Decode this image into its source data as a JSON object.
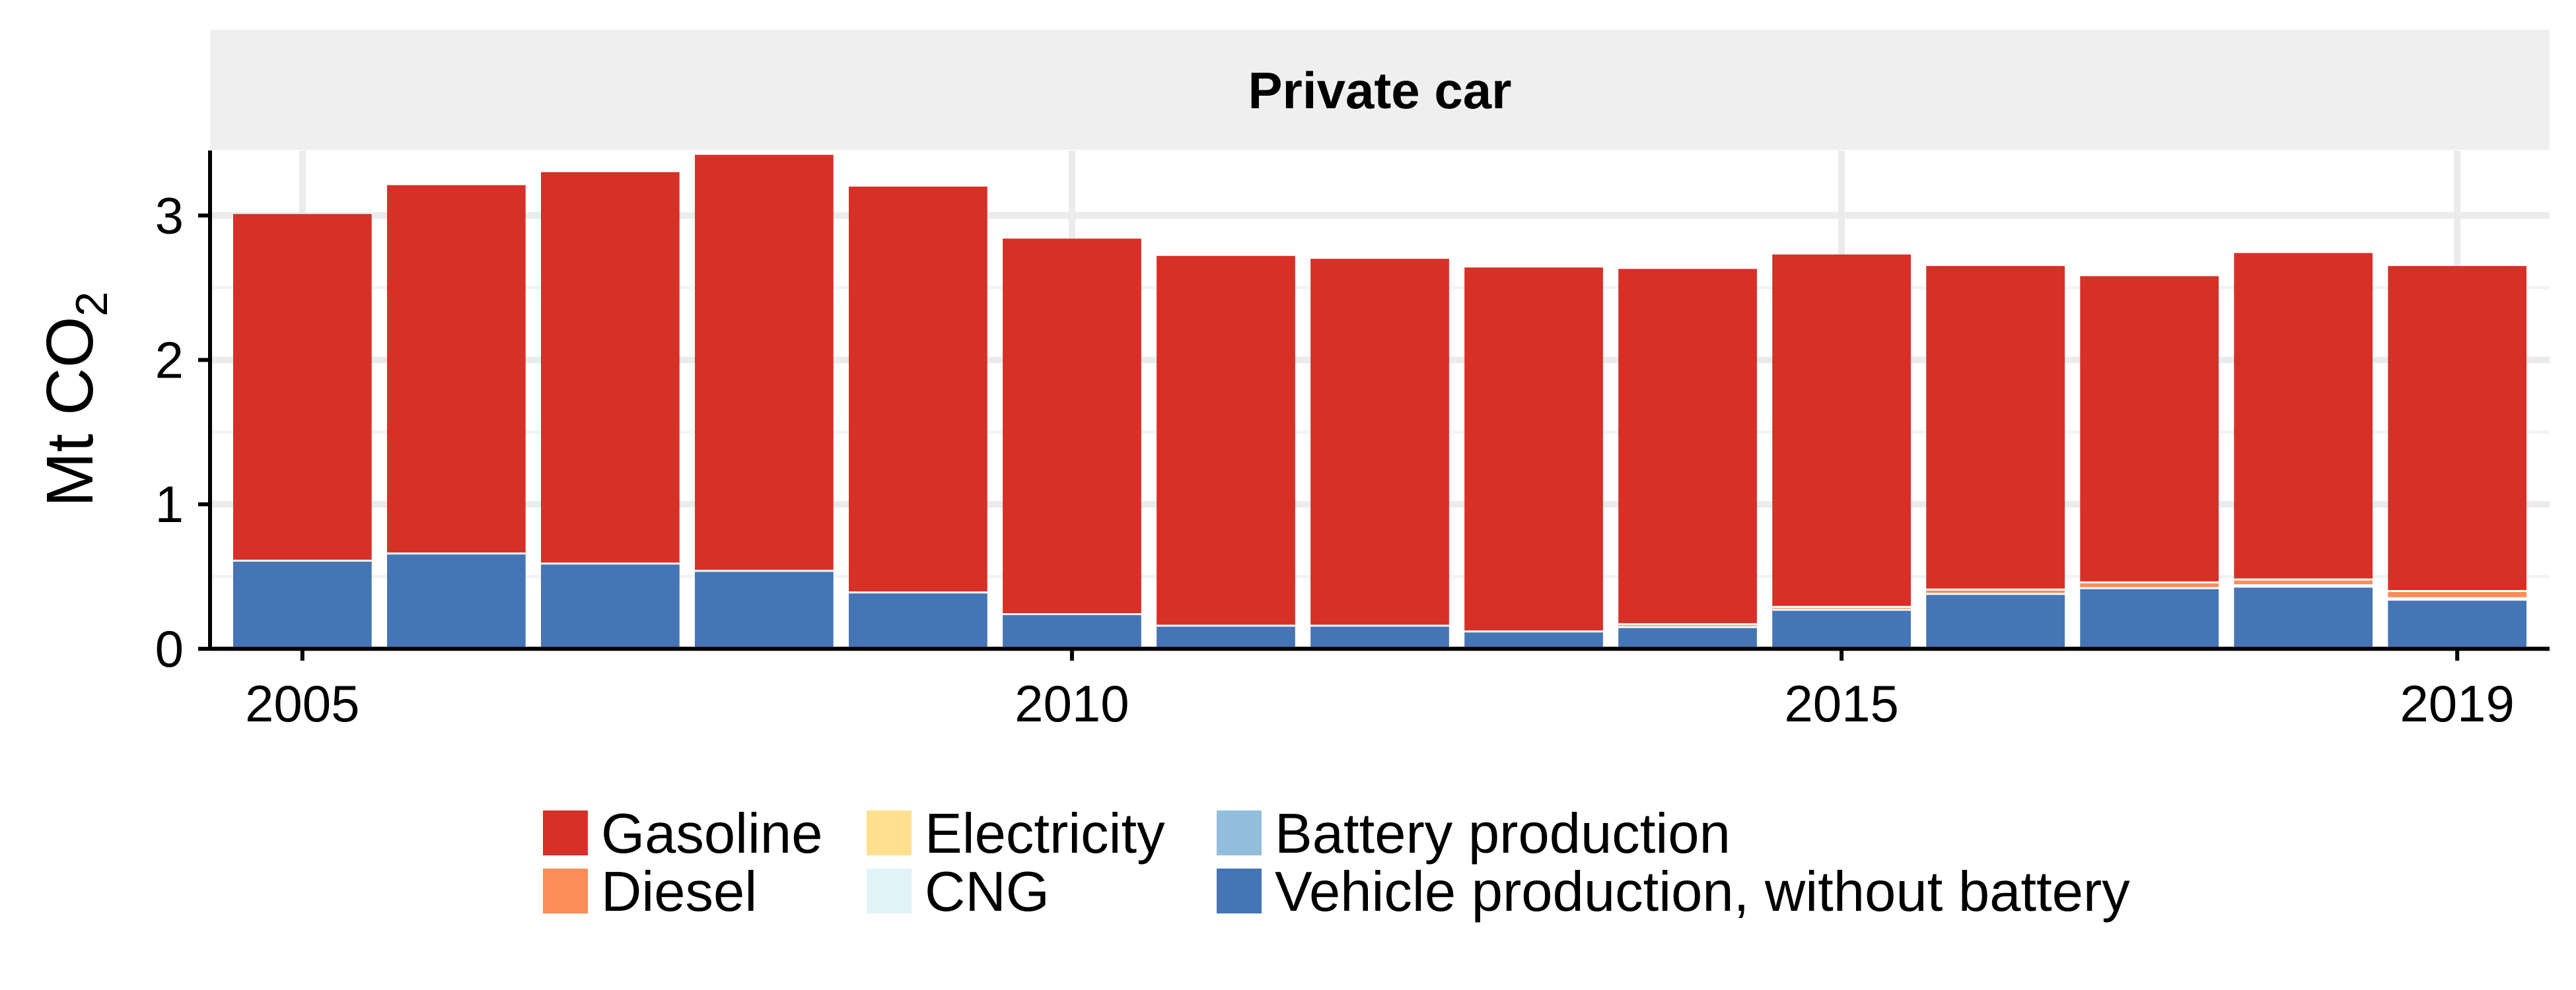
{
  "chart_data": {
    "type": "bar",
    "stacked": true,
    "facet_title": "Private car",
    "ylabel": "Mt CO",
    "ylabel_subscript": "2",
    "xlabel": "",
    "x": [
      2005,
      2006,
      2007,
      2008,
      2009,
      2010,
      2011,
      2012,
      2013,
      2014,
      2015,
      2016,
      2017,
      2018,
      2019
    ],
    "x_ticks": [
      2005,
      2010,
      2015,
      2019
    ],
    "y_ticks": [
      0,
      1,
      2,
      3
    ],
    "ylim": [
      0,
      3.45
    ],
    "grid": true,
    "legend_position": "bottom",
    "series": [
      {
        "name": "Vehicle production, without battery",
        "color": "#4575b4",
        "values": [
          0.61,
          0.66,
          0.59,
          0.54,
          0.39,
          0.24,
          0.16,
          0.16,
          0.12,
          0.15,
          0.27,
          0.38,
          0.42,
          0.43,
          0.34
        ]
      },
      {
        "name": "Battery production",
        "color": "#91bfdb",
        "values": [
          0,
          0,
          0,
          0,
          0,
          0,
          0,
          0,
          0,
          0,
          0,
          0,
          0,
          0.01,
          0.01
        ]
      },
      {
        "name": "CNG",
        "color": "#e0f3f8",
        "values": [
          0,
          0,
          0,
          0,
          0,
          0,
          0,
          0,
          0,
          0,
          0,
          0,
          0,
          0,
          0
        ]
      },
      {
        "name": "Electricity",
        "color": "#fee090",
        "values": [
          0,
          0,
          0,
          0,
          0,
          0,
          0,
          0,
          0,
          0,
          0,
          0,
          0,
          0,
          0
        ]
      },
      {
        "name": "Diesel",
        "color": "#fc8d59",
        "values": [
          0,
          0,
          0,
          0,
          0,
          0,
          0,
          0,
          0,
          0.02,
          0.02,
          0.03,
          0.04,
          0.04,
          0.05
        ]
      },
      {
        "name": "Gasoline",
        "color": "#d73027",
        "values": [
          2.4,
          2.55,
          2.71,
          2.88,
          2.81,
          2.6,
          2.56,
          2.54,
          2.52,
          2.46,
          2.44,
          2.24,
          2.12,
          2.26,
          2.25
        ]
      }
    ],
    "legend_order": [
      "Gasoline",
      "Diesel",
      "Electricity",
      "CNG",
      "Battery production",
      "Vehicle production, without battery"
    ]
  }
}
